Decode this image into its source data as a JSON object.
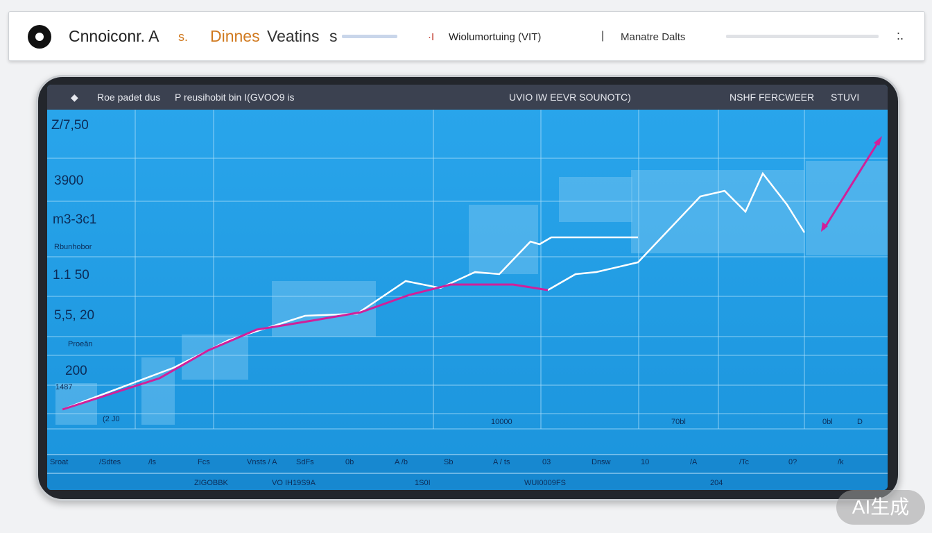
{
  "header": {
    "brand": "Cnnoiconr. A",
    "brand_suffix": "s.",
    "app_name": "Dinnes",
    "app_name_2": "Veatins",
    "app_name_3": "s",
    "nav": [
      "·I",
      "Wiolumortuing (VIT)",
      "|",
      "Manatre Dalts"
    ],
    "menu": ":."
  },
  "screen_bar": {
    "left": "Roe padet dus",
    "left_2": "P reusihobit bin I(GVOO9 is",
    "center": "UVIO IW EEVR SOUNOTC)",
    "right": "NSHF FERCWEER",
    "right_2": "STUVI"
  },
  "y_labels": [
    "Z/7,50",
    "3900",
    "m3-3c1",
    "Rbunhobor",
    "1.1 50",
    "5,5, 20",
    "Proeân",
    "200",
    "1487",
    "(2 J0"
  ],
  "inner_labels": [
    "10000",
    "70bl",
    "0bl",
    "D"
  ],
  "bottom_row_1": [
    "Sroat",
    "/Sdtes",
    "/ls",
    "Fcs",
    "Vnsts / A",
    "SdFs",
    "0b",
    "A /b",
    "Sb",
    "A / ts",
    "03",
    "Dnsw",
    "10",
    "/A",
    "/Tc",
    "0?",
    "/k"
  ],
  "bottom_row_2": [
    "ZIGOBBK",
    "VO IH19S9A",
    "1S0I",
    "WUI0009FS",
    "204"
  ],
  "watermark": "AI生成"
}
